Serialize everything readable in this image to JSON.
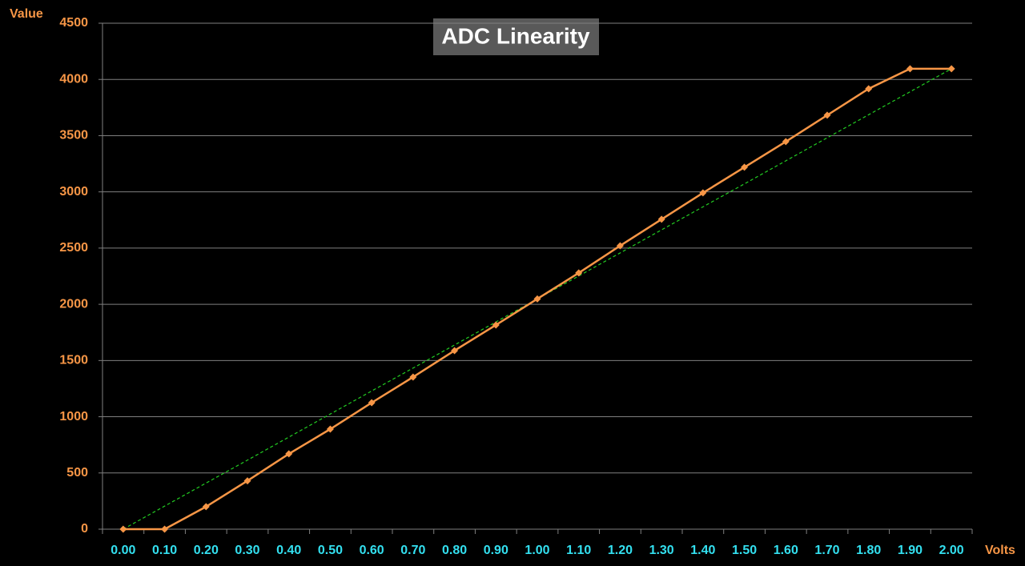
{
  "chart_data": {
    "type": "line",
    "title": "ADC Linearity",
    "x_label": "Volts",
    "y_label": "Value",
    "categories": [
      "0.00",
      "0.10",
      "0.20",
      "0.30",
      "0.40",
      "0.50",
      "0.60",
      "0.70",
      "0.80",
      "0.90",
      "1.00",
      "1.10",
      "1.20",
      "1.30",
      "1.40",
      "1.50",
      "1.60",
      "1.70",
      "1.80",
      "1.90",
      "2.00"
    ],
    "series": [
      {
        "color": "#f79646",
        "marker": "diamond",
        "dashed": false,
        "values": [
          0,
          0,
          200,
          430,
          670,
          890,
          1125,
          1353,
          1588,
          1816,
          2048,
          2279,
          2521,
          2756,
          2991,
          3219,
          3447,
          3682,
          3917,
          4095,
          4095
        ]
      },
      {
        "color": "#22cc22",
        "marker": "none",
        "dashed": true,
        "values": [
          0,
          205,
          410,
          614,
          819,
          1024,
          1229,
          1433,
          1638,
          1843,
          2048,
          2252,
          2457,
          2662,
          2867,
          3071,
          3276,
          3481,
          3686,
          3890,
          4095
        ]
      }
    ],
    "ylim": [
      0,
      4500
    ],
    "yticks": [
      0,
      500,
      1000,
      1500,
      2000,
      2500,
      3000,
      3500,
      4000,
      4500
    ],
    "grid": true
  }
}
